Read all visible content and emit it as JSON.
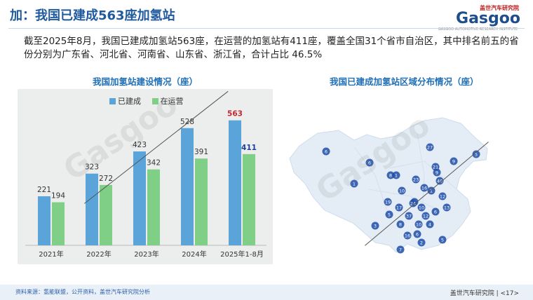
{
  "header": {
    "title": "加：我国已建成563座加氢站",
    "summary": "截至2025年8月，我国已建成加氢站563座，在运营的加氢站有411座，覆盖全国31个省市自治区，其中排名前五的省份分别为广东省、河北省、河南省、山东省、浙江省，合计占比 46.5%"
  },
  "logo": {
    "cn": "盖世汽车研究院",
    "en": "Gasgoo",
    "sub": "GASGOO AUTOMOTIVE RESEARCH INSTITUTE"
  },
  "watermark": {
    "text": "盖世汽车研究院",
    "en": "Gasgoo"
  },
  "chart_data": {
    "type": "bar",
    "title": "我国加氢站建设情况（座）",
    "categories": [
      "2021年",
      "2022年",
      "2023年",
      "2024年",
      "2025年1-8月"
    ],
    "series": [
      {
        "name": "已建成",
        "values": [
          221,
          323,
          423,
          528,
          563
        ],
        "color": "#5ba4d9"
      },
      {
        "name": "在运营",
        "values": [
          194,
          272,
          342,
          391,
          411
        ],
        "color": "#7fcf86"
      }
    ],
    "ylim": [
      0,
      600
    ],
    "highlight_colors": {
      "built_last": "#c0282d",
      "op_last": "#1f3f9e"
    }
  },
  "map": {
    "title": "我国已建成加氢站区域分布情况（座）",
    "points": [
      "6",
      "6",
      "27",
      "5",
      "1",
      "1",
      "9",
      "8",
      "23",
      "1",
      "21",
      "9",
      "40",
      "16",
      "10",
      "12",
      "19",
      "7",
      "17",
      "10",
      "24",
      "13",
      "6",
      "12",
      "5",
      "37",
      "3",
      "8",
      "10",
      "4",
      "16",
      "2",
      "5",
      "6",
      "7"
    ]
  },
  "footer": {
    "source": "资料来源：氢能联盟，公开资料，盖世汽车研究院分析",
    "page": "盖世汽车研究院 | <17>"
  }
}
